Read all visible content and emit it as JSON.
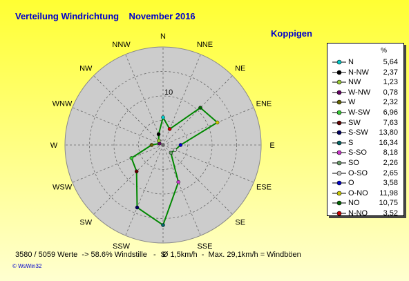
{
  "header": {
    "title": "Verteilung Windrichtung    November 2016",
    "station": "Koppigen"
  },
  "legend": {
    "unit": "%",
    "items": [
      {
        "name": "N",
        "value": "5,64",
        "color": "#00cccc"
      },
      {
        "name": "N-NW",
        "value": "2,37",
        "color": "#000000"
      },
      {
        "name": "NW",
        "value": "1,23",
        "color": "#99cc33"
      },
      {
        "name": "W-NW",
        "value": "0,78",
        "color": "#660066"
      },
      {
        "name": "W",
        "value": "2,32",
        "color": "#666600"
      },
      {
        "name": "W-SW",
        "value": "6,96",
        "color": "#33cc33"
      },
      {
        "name": "SW",
        "value": "7,63",
        "color": "#660000"
      },
      {
        "name": "S-SW",
        "value": "13,80",
        "color": "#000066"
      },
      {
        "name": "S",
        "value": "16,34",
        "color": "#006666"
      },
      {
        "name": "S-SO",
        "value": "8,18",
        "color": "#cc33cc"
      },
      {
        "name": "SO",
        "value": "2,26",
        "color": "#669966"
      },
      {
        "name": "O-SO",
        "value": "2,65",
        "color": "#cccccc"
      },
      {
        "name": "O",
        "value": "3,58",
        "color": "#0000cc"
      },
      {
        "name": "O-NO",
        "value": "11,98",
        "color": "#cccc00"
      },
      {
        "name": "NO",
        "value": "10,75",
        "color": "#006600"
      },
      {
        "name": "N-NO",
        "value": "3,52",
        "color": "#cc0000"
      }
    ]
  },
  "footer": {
    "stats": "3580 / 5059 Werte  -> 58.6% Windstille   -   Ø 1,5km/h  -  Max. 29,1km/h = Windböen",
    "copyright": "© WsWin32"
  },
  "chart_data": {
    "type": "radar",
    "directions": [
      "N",
      "NNE",
      "NE",
      "ENE",
      "E",
      "ESE",
      "SE",
      "SSE",
      "S",
      "SSW",
      "SW",
      "WSW",
      "W",
      "WNW",
      "NW",
      "NNW"
    ],
    "values": [
      5.64,
      3.52,
      10.75,
      11.98,
      3.58,
      2.65,
      2.26,
      8.18,
      16.34,
      13.8,
      7.63,
      6.96,
      2.32,
      0.78,
      1.23,
      2.37
    ],
    "point_colors": [
      "#00cccc",
      "#cc0000",
      "#006600",
      "#cccc00",
      "#0000cc",
      "#cccccc",
      "#669966",
      "#cc33cc",
      "#006666",
      "#000066",
      "#660000",
      "#33cc33",
      "#666600",
      "#660066",
      "#99cc33",
      "#000000"
    ],
    "ring_max": 20,
    "ring_label": "10",
    "ring_label_value": 10,
    "line_color": "#008800",
    "background_color": "#cccccc",
    "legend_position": "right"
  }
}
